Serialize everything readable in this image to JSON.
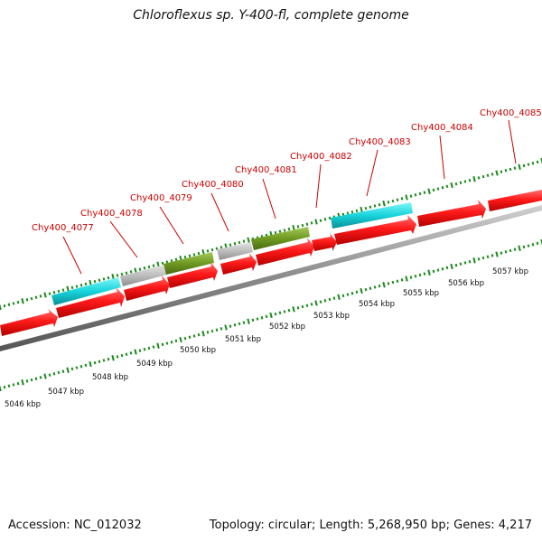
{
  "title": "Chloroflexus sp. Y-400-fl, complete genome",
  "footer": {
    "accession": "Accession: NC_012032",
    "info": "Topology: circular; Length: 5,268,950 bp; Genes: 4,217"
  },
  "colors": {
    "cds": "#ff0000",
    "backbone": "#8a8a8a",
    "tick": "#1a8a1a",
    "label": "#cc0000",
    "cyan": "#18d4dc",
    "grey": "#bdbdbd",
    "olive": "#6f9a22"
  },
  "kbp_labels": [
    "5046 kbp",
    "5047 kbp",
    "5048 kbp",
    "5049 kbp",
    "5050 kbp",
    "5051 kbp",
    "5052 kbp",
    "5053 kbp",
    "5054 kbp",
    "5055 kbp",
    "5056 kbp",
    "5057 kbp"
  ],
  "gene_labels": [
    "Chy400_4077",
    "Chy400_4078",
    "Chy400_4079",
    "Chy400_4080",
    "Chy400_4081",
    "Chy400_4082",
    "Chy400_4083",
    "Chy400_4084",
    "Chy400_4085"
  ],
  "features": [
    {
      "track": "outer",
      "color": "cyan"
    },
    {
      "track": "outer",
      "color": "grey"
    },
    {
      "track": "outer",
      "color": "olive"
    },
    {
      "track": "outer",
      "color": "grey"
    },
    {
      "track": "outer",
      "color": "olive"
    },
    {
      "track": "outer",
      "color": "cyan"
    }
  ]
}
